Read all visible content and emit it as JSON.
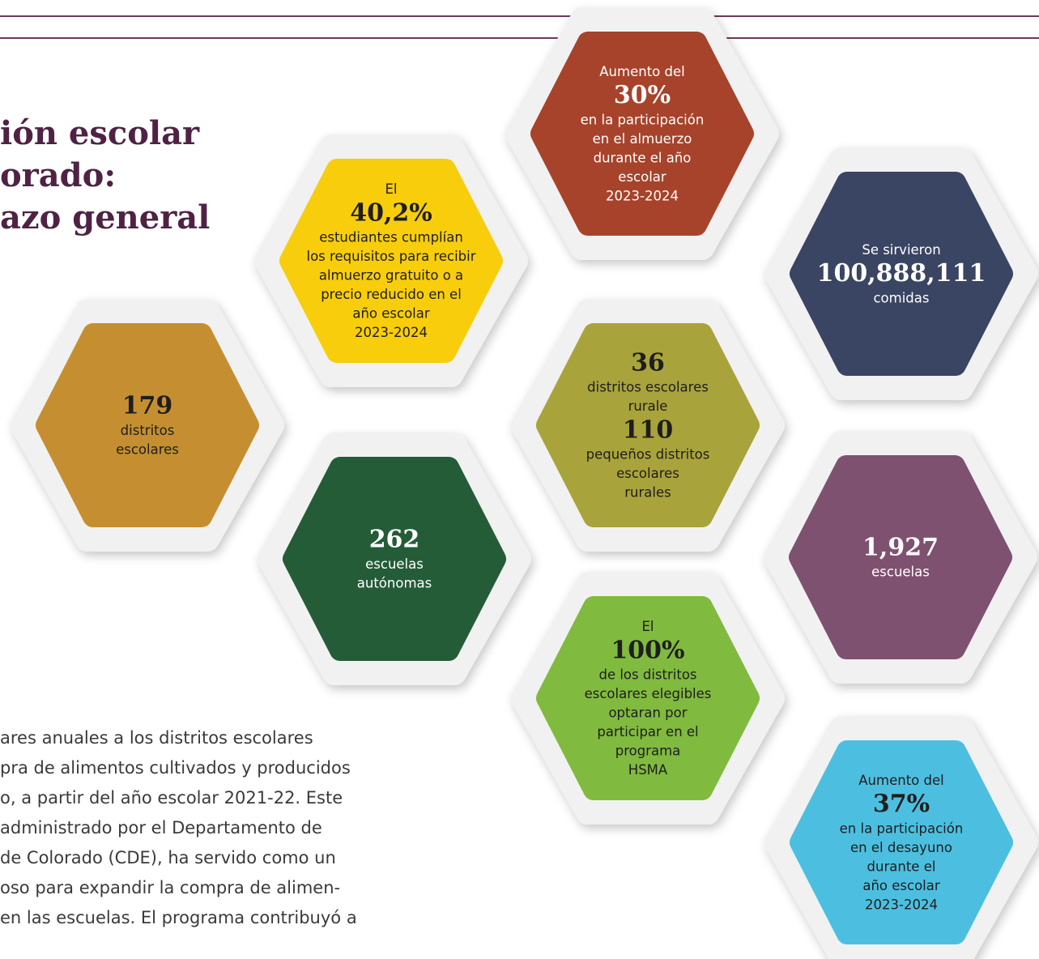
{
  "header": {
    "title_lines": [
      "ión escolar",
      "orado:",
      "azo general"
    ]
  },
  "hexagons": [
    {
      "color": "#a6432a",
      "text_color": "#ffffff",
      "lines": [
        "Aumento del",
        {
          "text": "30%",
          "style": "figure"
        },
        "en la participación",
        "en el almuerzo",
        "durante el año",
        "escolar",
        "2023-2024"
      ]
    },
    {
      "color": "#f8cd0c",
      "text_color": "#1e1e1e",
      "lines": [
        "El",
        {
          "text": "40,2%",
          "style": "figure"
        },
        "estudiantes cumplían",
        "los requisitos para recibir",
        "almuerzo gratuito o a",
        "precio reducido en el",
        "año escolar",
        "2023-2024"
      ]
    },
    {
      "color": "#3a4563",
      "text_color": "#ffffff",
      "lines": [
        "Se sirvieron",
        {
          "text": "100,888,111",
          "style": "figure"
        },
        "comidas"
      ]
    },
    {
      "color": "#c58f31",
      "text_color": "#1e1e1e",
      "lines": [
        {
          "text": "179",
          "style": "figure"
        },
        "distritos",
        "escolares"
      ]
    },
    {
      "color": "#a9a33b",
      "text_color": "#1e1e1e",
      "lines": [
        {
          "text": "36",
          "style": "figure"
        },
        "distritos escolares",
        "rurale",
        {
          "text": "110",
          "style": "figure"
        },
        "pequeños distritos",
        "escolares",
        "rurales"
      ]
    },
    {
      "color": "#245c38",
      "text_color": "#ffffff",
      "lines": [
        {
          "text": "262",
          "style": "figure"
        },
        "escuelas",
        "autónomas"
      ]
    },
    {
      "color": "#7f5170",
      "text_color": "#ffffff",
      "lines": [
        {
          "text": "1,927",
          "style": "figure"
        },
        "escuelas"
      ]
    },
    {
      "color": "#80ba3f",
      "text_color": "#1e1e1e",
      "lines": [
        "El",
        {
          "text": "100%",
          "style": "figure"
        },
        "de los distritos",
        "escolares elegibles",
        "optaran por",
        "participar en el",
        "programa",
        "HSMA"
      ]
    },
    {
      "color": "#4cbfe0",
      "text_color": "#1e1e1e",
      "lines": [
        "Aumento del",
        {
          "text": "37%",
          "style": "figure"
        },
        "en la participación",
        "en el desayuno",
        "durante el",
        "año escolar",
        "2023-2024"
      ]
    }
  ],
  "body": {
    "lines": [
      "ares anuales a los distritos escolares",
      "pra de alimentos cultivados y producidos",
      "o, a partir del año escolar 2021-22. Este",
      "administrado por el Departamento de",
      "de Colorado (CDE), ha servido como un",
      "oso para expandir la compra de alimen-",
      "en las escuelas. El programa contribuyó a"
    ]
  }
}
